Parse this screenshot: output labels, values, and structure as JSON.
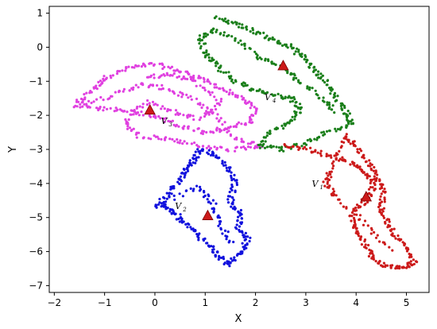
{
  "chart_data": {
    "type": "scatter",
    "title": "",
    "xlabel": "X",
    "ylabel": "Y",
    "xlim": [
      -2.1,
      5.45
    ],
    "ylim": [
      -7.2,
      1.2
    ],
    "xticks": [
      -2,
      -1,
      0,
      1,
      2,
      3,
      4,
      5
    ],
    "yticks": [
      1,
      0,
      -1,
      -2,
      -3,
      -4,
      -5,
      -6,
      -7
    ],
    "grid": false,
    "legend": "none",
    "series": [
      {
        "color": "#e040e0",
        "trail": [
          [
            -1.6,
            -1.7
          ],
          [
            -1.2,
            -1.2
          ],
          [
            -1.0,
            -0.9
          ],
          [
            -0.5,
            -0.6
          ],
          [
            0.0,
            -0.5
          ],
          [
            0.5,
            -0.7
          ],
          [
            0.9,
            -0.9
          ],
          [
            1.3,
            -1.2
          ],
          [
            1.7,
            -1.5
          ],
          [
            2.0,
            -1.8
          ],
          [
            1.9,
            -2.2
          ],
          [
            1.4,
            -2.4
          ],
          [
            1.0,
            -2.5
          ],
          [
            0.5,
            -2.3
          ],
          [
            0.0,
            -2.0
          ],
          [
            -0.5,
            -1.9
          ],
          [
            -1.0,
            -1.8
          ],
          [
            -1.6,
            -1.7
          ],
          [
            -0.8,
            -1.4
          ],
          [
            -0.3,
            -1.1
          ],
          [
            0.2,
            -1.2
          ],
          [
            0.7,
            -1.5
          ],
          [
            1.2,
            -2.0
          ],
          [
            1.6,
            -2.7
          ],
          [
            2.1,
            -2.9
          ],
          [
            1.5,
            -3.0
          ],
          [
            0.9,
            -2.9
          ],
          [
            0.3,
            -2.7
          ],
          [
            -0.3,
            -2.6
          ],
          [
            -0.6,
            -2.2
          ],
          [
            -0.2,
            -1.6
          ],
          [
            0.4,
            -1.9
          ],
          [
            0.9,
            -2.1
          ],
          [
            1.3,
            -1.6
          ],
          [
            0.8,
            -1.0
          ],
          [
            0.3,
            -0.8
          ],
          [
            -0.2,
            -0.9
          ]
        ],
        "centroid": [
          -0.1,
          -1.85
        ],
        "label": "V",
        "label_sub": "3",
        "label_pos": [
          0.12,
          -2.25
        ]
      },
      {
        "color": "#1010dd",
        "trail": [
          [
            0.0,
            -4.7
          ],
          [
            0.3,
            -4.3
          ],
          [
            0.5,
            -3.9
          ],
          [
            0.6,
            -3.6
          ],
          [
            0.75,
            -3.35
          ],
          [
            0.9,
            -3.0
          ],
          [
            1.2,
            -3.15
          ],
          [
            1.45,
            -3.55
          ],
          [
            1.6,
            -4.0
          ],
          [
            1.5,
            -4.5
          ],
          [
            1.7,
            -4.9
          ],
          [
            1.65,
            -5.3
          ],
          [
            1.85,
            -5.6
          ],
          [
            1.7,
            -6.0
          ],
          [
            1.45,
            -6.4
          ],
          [
            1.25,
            -6.1
          ],
          [
            1.05,
            -5.8
          ],
          [
            0.8,
            -5.4
          ],
          [
            0.55,
            -5.1
          ],
          [
            0.35,
            -4.8
          ],
          [
            0.1,
            -4.6
          ],
          [
            0.85,
            -4.1
          ],
          [
            1.15,
            -4.6
          ],
          [
            1.3,
            -5.2
          ],
          [
            1.55,
            -5.8
          ]
        ],
        "centroid": [
          1.05,
          -4.95
        ],
        "label": "V",
        "label_sub": "2",
        "label_pos": [
          0.4,
          -4.75
        ]
      },
      {
        "color": "#1a7f1a",
        "trail": [
          [
            1.2,
            0.85
          ],
          [
            1.6,
            0.7
          ],
          [
            2.0,
            0.45
          ],
          [
            2.4,
            0.2
          ],
          [
            2.7,
            0.0
          ],
          [
            3.0,
            -0.35
          ],
          [
            3.2,
            -0.75
          ],
          [
            3.45,
            -1.1
          ],
          [
            3.65,
            -1.6
          ],
          [
            3.85,
            -2.0
          ],
          [
            3.9,
            -2.3
          ],
          [
            3.4,
            -2.5
          ],
          [
            3.0,
            -2.8
          ],
          [
            2.5,
            -3.0
          ],
          [
            2.1,
            -2.9
          ],
          [
            2.3,
            -2.5
          ],
          [
            2.7,
            -2.2
          ],
          [
            2.9,
            -1.8
          ],
          [
            2.7,
            -1.5
          ],
          [
            2.3,
            -1.4
          ],
          [
            1.9,
            -1.2
          ],
          [
            1.5,
            -0.9
          ],
          [
            1.2,
            -0.5
          ],
          [
            1.0,
            -0.2
          ],
          [
            0.9,
            0.3
          ],
          [
            1.2,
            0.5
          ],
          [
            1.7,
            0.15
          ],
          [
            2.1,
            -0.35
          ],
          [
            2.55,
            -0.6
          ],
          [
            2.8,
            -0.9
          ],
          [
            3.3,
            -1.5
          ],
          [
            3.6,
            -1.9
          ]
        ],
        "centroid": [
          2.55,
          -0.55
        ],
        "label": "V",
        "label_sub": "4",
        "label_pos": [
          2.18,
          -1.55
        ]
      },
      {
        "color": "#cc1a1a",
        "trail": [
          [
            2.55,
            -2.9
          ],
          [
            3.0,
            -3.0
          ],
          [
            3.5,
            -3.2
          ],
          [
            3.9,
            -3.4
          ],
          [
            4.1,
            -3.6
          ],
          [
            4.35,
            -3.9
          ],
          [
            4.3,
            -4.3
          ],
          [
            4.1,
            -4.6
          ],
          [
            3.9,
            -5.0
          ],
          [
            4.0,
            -5.4
          ],
          [
            4.2,
            -5.8
          ],
          [
            4.35,
            -6.2
          ],
          [
            4.6,
            -6.45
          ],
          [
            4.95,
            -6.5
          ],
          [
            5.15,
            -6.3
          ],
          [
            5.0,
            -5.9
          ],
          [
            4.75,
            -5.5
          ],
          [
            4.6,
            -5.1
          ],
          [
            4.5,
            -4.7
          ],
          [
            4.55,
            -4.2
          ],
          [
            4.4,
            -3.8
          ],
          [
            4.25,
            -3.4
          ],
          [
            4.0,
            -2.9
          ],
          [
            3.8,
            -2.6
          ],
          [
            3.5,
            -3.6
          ],
          [
            3.4,
            -4.0
          ],
          [
            3.6,
            -4.4
          ],
          [
            4.2,
            -5.2
          ],
          [
            4.7,
            -6.0
          ]
        ],
        "centroid": [
          4.2,
          -4.4
        ],
        "label": "V",
        "label_sub": "1",
        "label_pos": [
          3.12,
          -4.1
        ]
      }
    ],
    "centroid_color": "#cc1a1a"
  }
}
